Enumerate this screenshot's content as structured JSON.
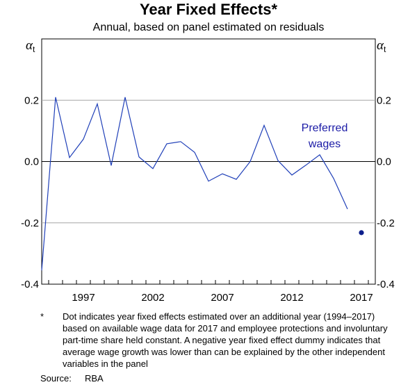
{
  "chart_data": {
    "type": "line",
    "title": "Year Fixed Effects*",
    "subtitle": "Annual, based on panel estimated on residuals",
    "axis_symbol_left": "α",
    "axis_symbol_left_sub": "t",
    "axis_symbol_right": "α",
    "axis_symbol_right_sub": "t",
    "xlim": [
      1994,
      2018
    ],
    "ylim": [
      -0.4,
      0.4
    ],
    "x_ticks": [
      1997,
      2002,
      2007,
      2012,
      2017
    ],
    "x_tick_labels": [
      "1997",
      "2002",
      "2007",
      "2012",
      "2017"
    ],
    "y_ticks": [
      0.2,
      0.0,
      -0.2,
      -0.4
    ],
    "y_tick_labels": [
      "0.2",
      "0.0",
      "-0.2",
      "-0.4"
    ],
    "grid": true,
    "series": [
      {
        "name": "Preferred wages",
        "color": "#1f3fb8",
        "x": [
          1994,
          1995,
          1996,
          1997,
          1998,
          1999,
          2000,
          2001,
          2002,
          2003,
          2004,
          2005,
          2006,
          2007,
          2008,
          2009,
          2010,
          2011,
          2012,
          2013,
          2014,
          2015,
          2016
        ],
        "values": [
          -0.355,
          0.21,
          0.013,
          0.073,
          0.188,
          -0.013,
          0.21,
          0.015,
          -0.023,
          0.058,
          0.065,
          0.03,
          -0.064,
          -0.04,
          -0.058,
          0.0,
          0.118,
          0.003,
          -0.044,
          -0.012,
          0.022,
          -0.055,
          -0.155
        ]
      }
    ],
    "points": [
      {
        "name": "Dot estimate 2017",
        "x": 2017,
        "y": -0.232,
        "color": "#0d1f8c"
      }
    ],
    "annotations": [
      {
        "line1": "Preferred",
        "line2": "wages",
        "color": "#1a1aa6"
      }
    ]
  },
  "footnote": {
    "marker": "*",
    "text": "Dot indicates year fixed effects estimated over an additional year (1994–2017) based on available wage data for 2017 and employee protections and involuntary part-time share held constant. A negative year fixed effect dummy indicates that average wage growth was lower than can be explained by the other independent variables in the panel"
  },
  "source": {
    "label": "Source:",
    "value": "RBA"
  }
}
